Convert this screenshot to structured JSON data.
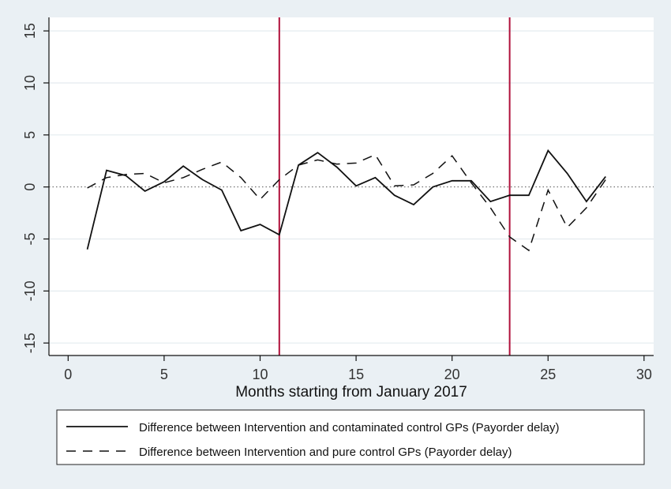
{
  "chart_data": {
    "type": "line",
    "title": "",
    "xlabel": "Months starting from January 2017",
    "ylabel": "",
    "xlim": [
      -1,
      30.5
    ],
    "ylim": [
      -16.2,
      16.3
    ],
    "x_ticks": [
      0,
      5,
      10,
      15,
      20,
      25,
      30
    ],
    "x_tick_labels": [
      "0",
      "5",
      "10",
      "15",
      "20",
      "25",
      "30"
    ],
    "y_ticks": [
      -15,
      -10,
      -5,
      0,
      5,
      10,
      15
    ],
    "y_tick_labels": [
      "-15",
      "-10",
      "-5",
      "0",
      "5",
      "10",
      "15"
    ],
    "grid": true,
    "reference_line": 0,
    "vertical_lines": [
      11,
      23
    ],
    "legend_position": "bottom",
    "x": [
      1,
      2,
      3,
      4,
      5,
      6,
      7,
      8,
      9,
      10,
      11,
      12,
      13,
      14,
      15,
      16,
      17,
      18,
      19,
      20,
      21,
      22,
      23,
      24,
      25,
      26,
      27,
      28
    ],
    "series": [
      {
        "name": "Difference between Intervention and contaminated control GPs (Payorder delay)",
        "style": "solid",
        "values": [
          -6.0,
          1.6,
          1.1,
          -0.4,
          0.5,
          2.0,
          0.7,
          -0.3,
          -4.2,
          -3.6,
          -4.6,
          2.1,
          3.3,
          1.9,
          0.1,
          0.9,
          -0.8,
          -1.7,
          0.0,
          0.6,
          0.6,
          -1.4,
          -0.8,
          -0.8,
          3.5,
          1.3,
          -1.4,
          1.0
        ]
      },
      {
        "name": "Difference between Intervention and pure control GPs (Payorder delay)",
        "style": "dashed",
        "values": [
          -0.1,
          0.9,
          1.2,
          1.3,
          0.4,
          0.9,
          1.7,
          2.4,
          0.9,
          -1.2,
          0.7,
          2.1,
          2.6,
          2.2,
          2.3,
          3.1,
          0.1,
          0.2,
          1.3,
          3.0,
          0.4,
          -2.0,
          -4.8,
          -6.1,
          -0.3,
          -3.9,
          -2.0,
          0.7
        ]
      }
    ]
  },
  "colors": {
    "background": "#eaf0f4",
    "plot_background": "#ffffff",
    "grid": "#e4ebef",
    "series_line": "#111111",
    "vertical_lines": "#b0103a",
    "reference_line": "#555555"
  }
}
